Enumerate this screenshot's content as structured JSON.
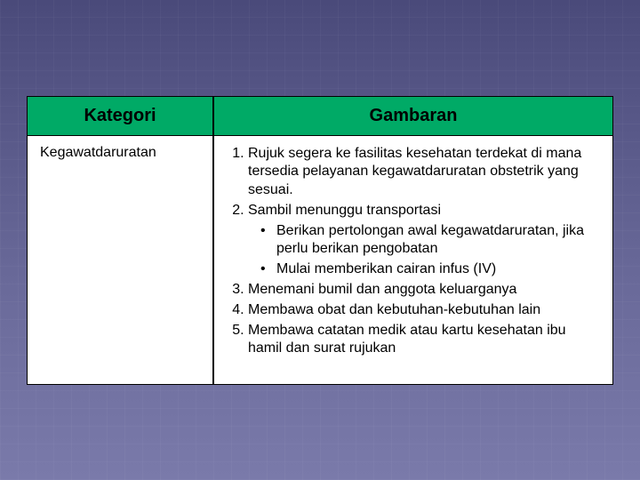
{
  "table": {
    "header": {
      "col1": "Kategori",
      "col2": "Gambaran"
    },
    "row": {
      "category": "Kegawatdaruratan",
      "items": {
        "i1": "Rujuk segera ke fasilitas kesehatan terdekat di mana tersedia pelayanan kegawatdaruratan obstetrik yang sesuai.",
        "i2": "Sambil menunggu transportasi",
        "i2_sub_a": "Berikan pertolongan awal kegawatdaruratan, jika perlu berikan pengobatan",
        "i2_sub_b": "Mulai memberikan cairan infus (IV)",
        "i3": "Menemani bumil dan anggota keluarganya",
        "i4": "Membawa obat dan kebutuhan-kebutuhan lain",
        "i5": "Membawa catatan medik atau kartu kesehatan ibu hamil dan surat rujukan"
      }
    }
  },
  "colors": {
    "header_bg": "#00aa66",
    "cell_bg": "#ffffff",
    "border": "#000000",
    "text": "#000000"
  }
}
